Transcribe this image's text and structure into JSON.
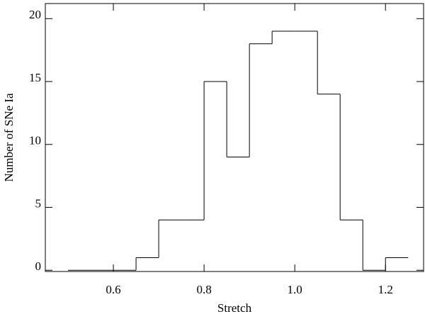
{
  "chart_data": {
    "type": "histogram",
    "x_label": "Stretch",
    "y_label": "Number of SNe Ia",
    "bins": [
      0.5,
      0.55,
      0.6,
      0.65,
      0.7,
      0.75,
      0.8,
      0.85,
      0.9,
      0.95,
      1.0,
      1.05,
      1.1,
      1.15,
      1.2,
      1.25
    ],
    "values": [
      0,
      0,
      0,
      1,
      4,
      4,
      15,
      9,
      18,
      19,
      19,
      14,
      4,
      0,
      1
    ],
    "color": "#000000",
    "xlim": [
      0.45,
      1.284
    ],
    "xticks": [
      0.6,
      0.8,
      {
        "value": 1.0,
        "label": "1.0"
      },
      1.2
    ],
    "ylim": [
      -0.1,
      21.2
    ],
    "yticks": [
      0,
      5,
      10,
      15,
      20
    ]
  }
}
